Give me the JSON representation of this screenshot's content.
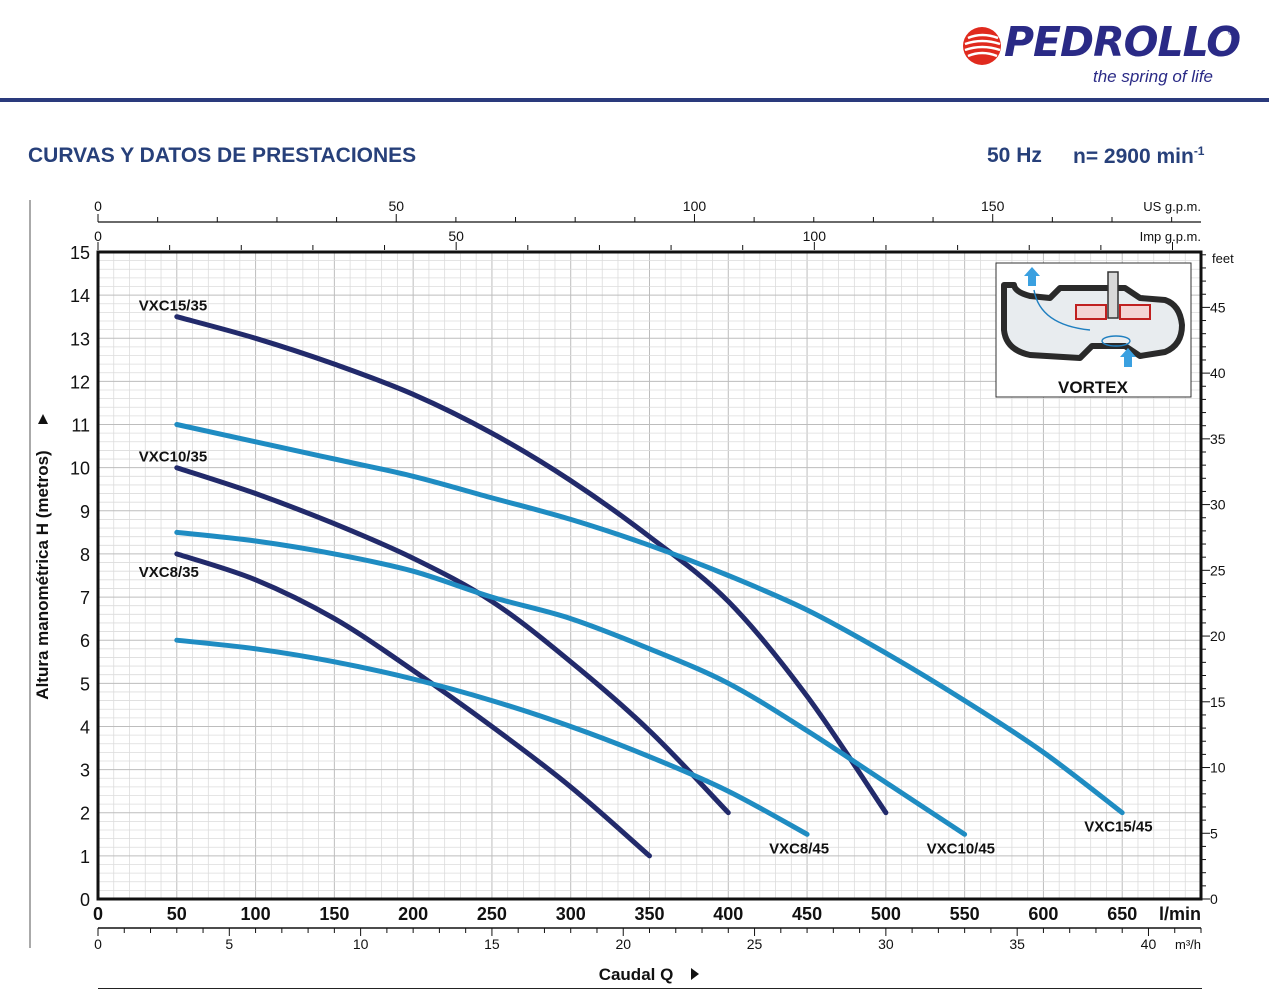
{
  "header": {
    "brand": "PEDROLLO",
    "registered": "®",
    "tagline": "the spring of life",
    "title": "CURVAS Y DATOS DE PRESTACIONES",
    "frequency": "50 Hz",
    "speed_prefix": "n= 2900 min",
    "speed_exponent": "-1"
  },
  "colors": {
    "dark_series": "#222a6b",
    "light_series": "#1f8cc2",
    "brand": "#2a2a86",
    "title": "#27407a",
    "grid": "#c8c8c8"
  },
  "inset": {
    "label": "VORTEX"
  },
  "chart_data": {
    "type": "line",
    "ylabel": "Altura manométrica H (metros)",
    "xlabel": "Caudal Q",
    "x_unit": "l/min",
    "xlim": [
      0,
      700
    ],
    "ylim": [
      0,
      15
    ],
    "x_ticks": [
      0,
      50,
      100,
      150,
      200,
      250,
      300,
      350,
      400,
      450,
      500,
      550,
      600,
      650
    ],
    "y_ticks": [
      0,
      1,
      2,
      3,
      4,
      5,
      6,
      7,
      8,
      9,
      10,
      11,
      12,
      13,
      14,
      15
    ],
    "grid": true,
    "secondary_axes": {
      "feet": {
        "unit": "feet",
        "ticks": [
          0,
          5,
          10,
          15,
          20,
          25,
          30,
          35,
          40,
          45
        ]
      },
      "m3h": {
        "unit": "m³/h",
        "ticks": [
          0,
          5,
          10,
          15,
          20,
          25,
          30,
          35,
          40
        ]
      },
      "us_gpm": {
        "unit": "US g.p.m.",
        "ticks": [
          0,
          50,
          100,
          150
        ]
      },
      "imp_gpm": {
        "unit": "Imp g.p.m.",
        "ticks": [
          0,
          50,
          100
        ]
      }
    },
    "series": [
      {
        "name": "VXC8/35",
        "style": "dark",
        "x": [
          50,
          100,
          150,
          200,
          250,
          300,
          350
        ],
        "y": [
          8,
          7.4,
          6.5,
          5.3,
          4.0,
          2.6,
          1.0
        ]
      },
      {
        "name": "VXC10/35",
        "style": "dark",
        "x": [
          50,
          100,
          150,
          200,
          250,
          300,
          350,
          400
        ],
        "y": [
          10,
          9.4,
          8.7,
          7.9,
          6.9,
          5.5,
          3.9,
          2.0
        ]
      },
      {
        "name": "VXC15/35",
        "style": "dark",
        "x": [
          50,
          100,
          150,
          200,
          250,
          300,
          350,
          400,
          450,
          500
        ],
        "y": [
          13.5,
          13.0,
          12.4,
          11.7,
          10.8,
          9.7,
          8.4,
          6.9,
          4.7,
          2.0
        ]
      },
      {
        "name": "VXC8/45",
        "style": "light",
        "x": [
          50,
          100,
          150,
          200,
          250,
          300,
          350,
          400,
          450
        ],
        "y": [
          6.0,
          5.8,
          5.5,
          5.1,
          4.6,
          4.0,
          3.3,
          2.5,
          1.5
        ]
      },
      {
        "name": "VXC10/45",
        "style": "light",
        "x": [
          50,
          100,
          150,
          200,
          250,
          300,
          350,
          400,
          450,
          500,
          550
        ],
        "y": [
          8.5,
          8.3,
          8.0,
          7.6,
          7.0,
          6.5,
          5.8,
          5.0,
          3.9,
          2.7,
          1.5
        ]
      },
      {
        "name": "VXC15/45",
        "style": "light",
        "x": [
          50,
          100,
          150,
          200,
          250,
          300,
          350,
          400,
          450,
          500,
          550,
          600,
          650
        ],
        "y": [
          11.0,
          10.6,
          10.2,
          9.8,
          9.3,
          8.8,
          8.2,
          7.5,
          6.7,
          5.7,
          4.6,
          3.4,
          2.0
        ]
      }
    ]
  }
}
